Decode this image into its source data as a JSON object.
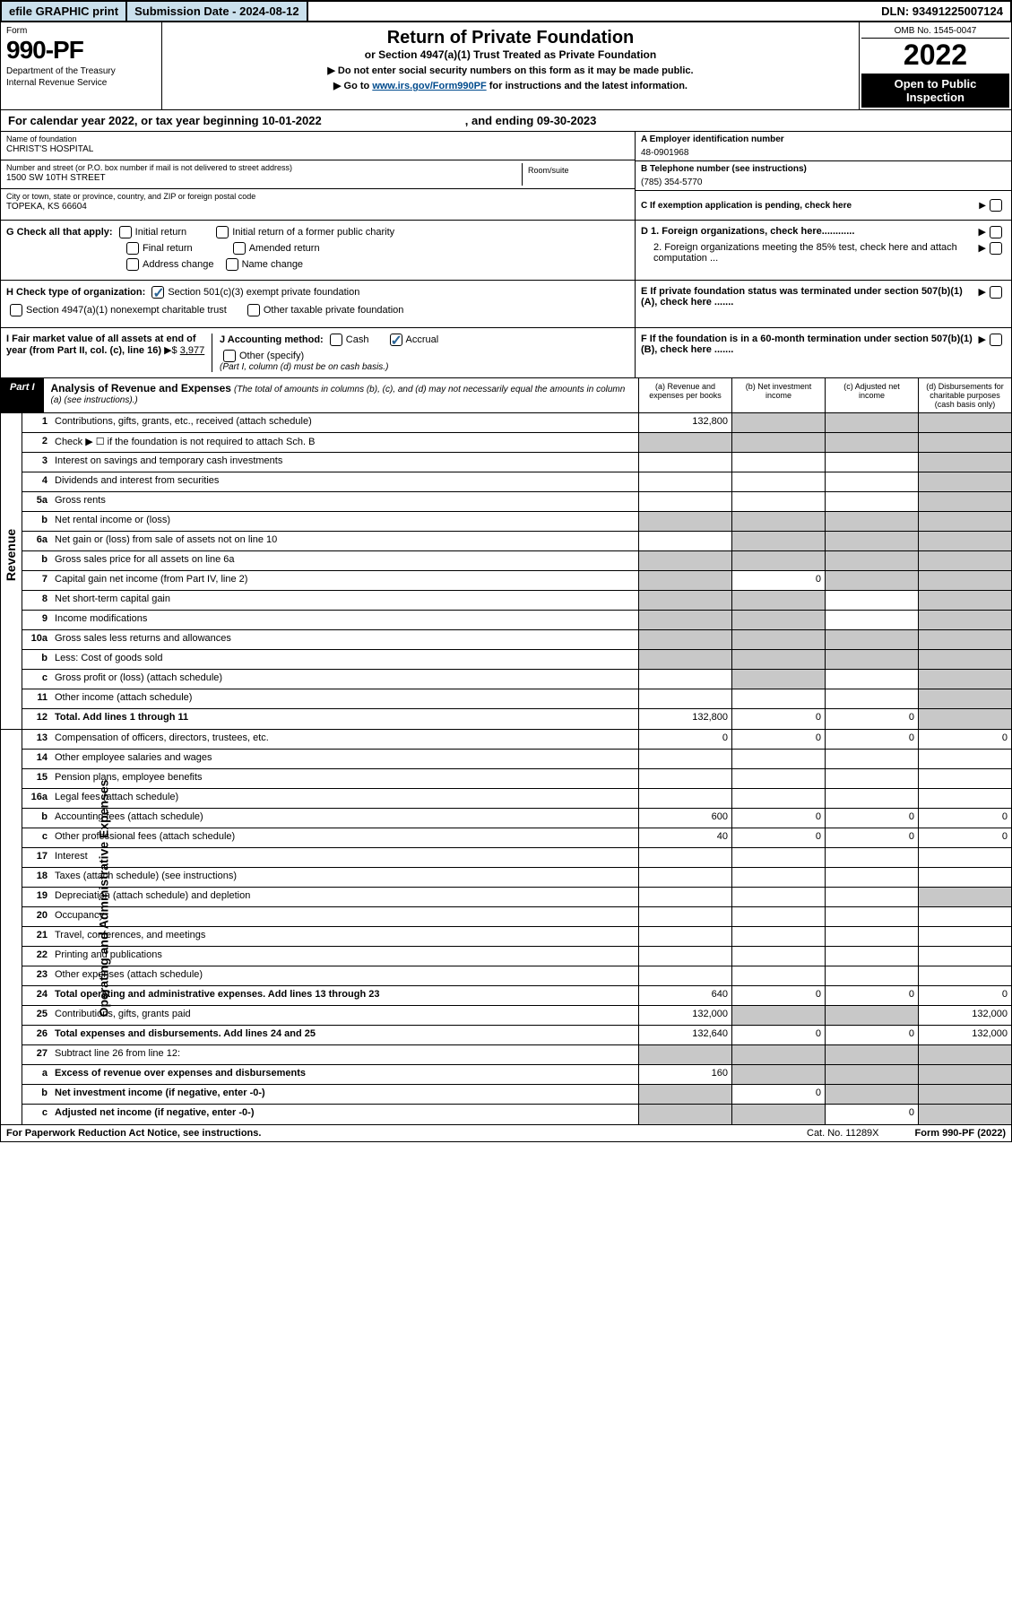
{
  "top_bar": {
    "efile": "efile GRAPHIC print",
    "submission": "Submission Date - 2024-08-12",
    "dln": "DLN: 93491225007124"
  },
  "header": {
    "form_label": "Form",
    "form_number": "990-PF",
    "dept1": "Department of the Treasury",
    "dept2": "Internal Revenue Service",
    "title": "Return of Private Foundation",
    "subtitle": "or Section 4947(a)(1) Trust Treated as Private Foundation",
    "note1": "▶ Do not enter social security numbers on this form as it may be made public.",
    "note2_pre": "▶ Go to ",
    "note2_link": "www.irs.gov/Form990PF",
    "note2_post": " for instructions and the latest information.",
    "omb": "OMB No. 1545-0047",
    "year": "2022",
    "inspect": "Open to Public Inspection"
  },
  "cal_year": {
    "text1": "For calendar year 2022, or tax year beginning 10-01-2022",
    "text2": ", and ending 09-30-2023"
  },
  "entity": {
    "name_label": "Name of foundation",
    "name_val": "CHRIST'S HOSPITAL",
    "addr_label": "Number and street (or P.O. box number if mail is not delivered to street address)",
    "addr_val": "1500 SW 10TH STREET",
    "room_label": "Room/suite",
    "city_label": "City or town, state or province, country, and ZIP or foreign postal code",
    "city_val": "TOPEKA, KS  66604",
    "ein_label": "A Employer identification number",
    "ein_val": "48-0901968",
    "tel_label": "B Telephone number (see instructions)",
    "tel_val": "(785) 354-5770",
    "c_label": "C If exemption application is pending, check here"
  },
  "checks": {
    "g_label": "G Check all that apply:",
    "initial": "Initial return",
    "initial_former": "Initial return of a former public charity",
    "final": "Final return",
    "amended": "Amended return",
    "address": "Address change",
    "name": "Name change",
    "d1": "D 1. Foreign organizations, check here............",
    "d2": "2. Foreign organizations meeting the 85% test, check here and attach computation ...",
    "e": "E  If private foundation status was terminated under section 507(b)(1)(A), check here .......",
    "h_label": "H Check type of organization:",
    "h_501c3": "Section 501(c)(3) exempt private foundation",
    "h_4947": "Section 4947(a)(1) nonexempt charitable trust",
    "h_other_tax": "Other taxable private foundation",
    "i_label": "I Fair market value of all assets at end of year (from Part II, col. (c), line 16)",
    "i_val": "3,977",
    "j_label": "J Accounting method:",
    "j_cash": "Cash",
    "j_accrual": "Accrual",
    "j_other": "Other (specify)",
    "j_note": "(Part I, column (d) must be on cash basis.)",
    "f_label": "F  If the foundation is in a 60-month termination under section 507(b)(1)(B), check here ......."
  },
  "part1": {
    "label": "Part I",
    "title": "Analysis of Revenue and Expenses",
    "title_note": "(The total of amounts in columns (b), (c), and (d) may not necessarily equal the amounts in column (a) (see instructions).)",
    "col_a": "(a)   Revenue and expenses per books",
    "col_b": "(b)   Net investment income",
    "col_c": "(c)   Adjusted net income",
    "col_d": "(d)   Disbursements for charitable purposes (cash basis only)"
  },
  "side_labels": {
    "revenue": "Revenue",
    "expenses": "Operating and Administrative Expenses"
  },
  "rows": [
    {
      "num": "1",
      "desc": "Contributions, gifts, grants, etc., received (attach schedule)",
      "a": "132,800",
      "b": "",
      "c": "",
      "d": "",
      "grey": [
        "b",
        "c",
        "d"
      ]
    },
    {
      "num": "2",
      "desc": "Check ▶ ☐ if the foundation is not required to attach Sch. B",
      "a": "",
      "b": "",
      "c": "",
      "d": "",
      "grey": [
        "a",
        "b",
        "c",
        "d"
      ]
    },
    {
      "num": "3",
      "desc": "Interest on savings and temporary cash investments",
      "a": "",
      "b": "",
      "c": "",
      "d": "",
      "grey": [
        "d"
      ]
    },
    {
      "num": "4",
      "desc": "Dividends and interest from securities",
      "a": "",
      "b": "",
      "c": "",
      "d": "",
      "grey": [
        "d"
      ]
    },
    {
      "num": "5a",
      "desc": "Gross rents",
      "a": "",
      "b": "",
      "c": "",
      "d": "",
      "grey": [
        "d"
      ]
    },
    {
      "num": "b",
      "desc": "Net rental income or (loss)",
      "a": "",
      "b": "",
      "c": "",
      "d": "",
      "grey": [
        "a",
        "b",
        "c",
        "d"
      ]
    },
    {
      "num": "6a",
      "desc": "Net gain or (loss) from sale of assets not on line 10",
      "a": "",
      "b": "",
      "c": "",
      "d": "",
      "grey": [
        "b",
        "c",
        "d"
      ]
    },
    {
      "num": "b",
      "desc": "Gross sales price for all assets on line 6a",
      "a": "",
      "b": "",
      "c": "",
      "d": "",
      "grey": [
        "a",
        "b",
        "c",
        "d"
      ]
    },
    {
      "num": "7",
      "desc": "Capital gain net income (from Part IV, line 2)",
      "a": "",
      "b": "0",
      "c": "",
      "d": "",
      "grey": [
        "a",
        "c",
        "d"
      ]
    },
    {
      "num": "8",
      "desc": "Net short-term capital gain",
      "a": "",
      "b": "",
      "c": "",
      "d": "",
      "grey": [
        "a",
        "b",
        "d"
      ]
    },
    {
      "num": "9",
      "desc": "Income modifications",
      "a": "",
      "b": "",
      "c": "",
      "d": "",
      "grey": [
        "a",
        "b",
        "d"
      ]
    },
    {
      "num": "10a",
      "desc": "Gross sales less returns and allowances",
      "a": "",
      "b": "",
      "c": "",
      "d": "",
      "grey": [
        "a",
        "b",
        "c",
        "d"
      ]
    },
    {
      "num": "b",
      "desc": "Less: Cost of goods sold",
      "a": "",
      "b": "",
      "c": "",
      "d": "",
      "grey": [
        "a",
        "b",
        "c",
        "d"
      ]
    },
    {
      "num": "c",
      "desc": "Gross profit or (loss) (attach schedule)",
      "a": "",
      "b": "",
      "c": "",
      "d": "",
      "grey": [
        "b",
        "d"
      ]
    },
    {
      "num": "11",
      "desc": "Other income (attach schedule)",
      "a": "",
      "b": "",
      "c": "",
      "d": "",
      "grey": [
        "d"
      ]
    },
    {
      "num": "12",
      "desc": "Total. Add lines 1 through 11",
      "bold": true,
      "a": "132,800",
      "b": "0",
      "c": "0",
      "d": "",
      "grey": [
        "d"
      ]
    }
  ],
  "exp_rows": [
    {
      "num": "13",
      "desc": "Compensation of officers, directors, trustees, etc.",
      "a": "0",
      "b": "0",
      "c": "0",
      "d": "0"
    },
    {
      "num": "14",
      "desc": "Other employee salaries and wages",
      "a": "",
      "b": "",
      "c": "",
      "d": ""
    },
    {
      "num": "15",
      "desc": "Pension plans, employee benefits",
      "a": "",
      "b": "",
      "c": "",
      "d": ""
    },
    {
      "num": "16a",
      "desc": "Legal fees (attach schedule)",
      "a": "",
      "b": "",
      "c": "",
      "d": ""
    },
    {
      "num": "b",
      "desc": "Accounting fees (attach schedule)",
      "a": "600",
      "b": "0",
      "c": "0",
      "d": "0"
    },
    {
      "num": "c",
      "desc": "Other professional fees (attach schedule)",
      "a": "40",
      "b": "0",
      "c": "0",
      "d": "0"
    },
    {
      "num": "17",
      "desc": "Interest",
      "a": "",
      "b": "",
      "c": "",
      "d": ""
    },
    {
      "num": "18",
      "desc": "Taxes (attach schedule) (see instructions)",
      "a": "",
      "b": "",
      "c": "",
      "d": ""
    },
    {
      "num": "19",
      "desc": "Depreciation (attach schedule) and depletion",
      "a": "",
      "b": "",
      "c": "",
      "d": "",
      "grey": [
        "d"
      ]
    },
    {
      "num": "20",
      "desc": "Occupancy",
      "a": "",
      "b": "",
      "c": "",
      "d": ""
    },
    {
      "num": "21",
      "desc": "Travel, conferences, and meetings",
      "a": "",
      "b": "",
      "c": "",
      "d": ""
    },
    {
      "num": "22",
      "desc": "Printing and publications",
      "a": "",
      "b": "",
      "c": "",
      "d": ""
    },
    {
      "num": "23",
      "desc": "Other expenses (attach schedule)",
      "a": "",
      "b": "",
      "c": "",
      "d": ""
    },
    {
      "num": "24",
      "desc": "Total operating and administrative expenses. Add lines 13 through 23",
      "bold": true,
      "a": "640",
      "b": "0",
      "c": "0",
      "d": "0"
    },
    {
      "num": "25",
      "desc": "Contributions, gifts, grants paid",
      "a": "132,000",
      "b": "",
      "c": "",
      "d": "132,000",
      "grey": [
        "b",
        "c"
      ]
    },
    {
      "num": "26",
      "desc": "Total expenses and disbursements. Add lines 24 and 25",
      "bold": true,
      "a": "132,640",
      "b": "0",
      "c": "0",
      "d": "132,000"
    },
    {
      "num": "27",
      "desc": "Subtract line 26 from line 12:",
      "a": "",
      "b": "",
      "c": "",
      "d": "",
      "grey": [
        "a",
        "b",
        "c",
        "d"
      ]
    },
    {
      "num": "a",
      "desc": "Excess of revenue over expenses and disbursements",
      "bold": true,
      "a": "160",
      "b": "",
      "c": "",
      "d": "",
      "grey": [
        "b",
        "c",
        "d"
      ]
    },
    {
      "num": "b",
      "desc": "Net investment income (if negative, enter -0-)",
      "bold": true,
      "a": "",
      "b": "0",
      "c": "",
      "d": "",
      "grey": [
        "a",
        "c",
        "d"
      ]
    },
    {
      "num": "c",
      "desc": "Adjusted net income (if negative, enter -0-)",
      "bold": true,
      "a": "",
      "b": "",
      "c": "0",
      "d": "",
      "grey": [
        "a",
        "b",
        "d"
      ]
    }
  ],
  "footer": {
    "left": "For Paperwork Reduction Act Notice, see instructions.",
    "cat": "Cat. No. 11289X",
    "form": "Form 990-PF (2022)"
  }
}
